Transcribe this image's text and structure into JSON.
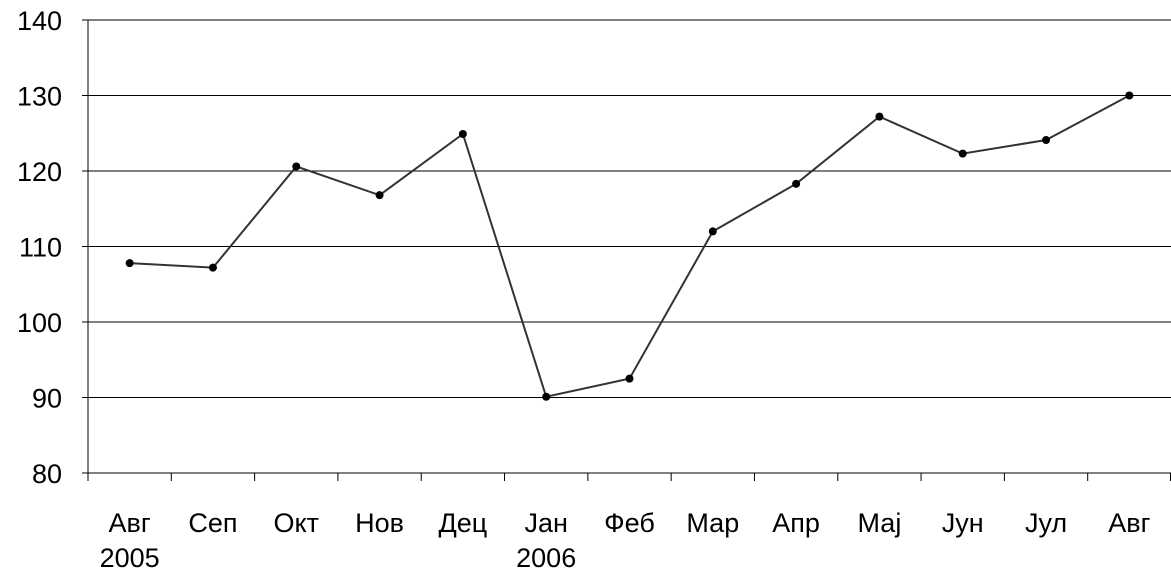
{
  "chart_data": {
    "type": "line",
    "categories": [
      {
        "label": "Авг",
        "year": "2005"
      },
      {
        "label": "Сеп",
        "year": ""
      },
      {
        "label": "Окт",
        "year": ""
      },
      {
        "label": "Нов",
        "year": ""
      },
      {
        "label": "Дец",
        "year": ""
      },
      {
        "label": "Јан",
        "year": "2006"
      },
      {
        "label": "Феб",
        "year": ""
      },
      {
        "label": "Мар",
        "year": ""
      },
      {
        "label": "Апр",
        "year": ""
      },
      {
        "label": "Мај",
        "year": ""
      },
      {
        "label": "Јун",
        "year": ""
      },
      {
        "label": "Јул",
        "year": ""
      },
      {
        "label": "Авг",
        "year": ""
      }
    ],
    "series": [
      {
        "values": [
          107.8,
          107.2,
          120.6,
          116.8,
          124.9,
          90.1,
          92.5,
          112.0,
          118.3,
          127.2,
          122.3,
          124.1,
          130.0
        ]
      }
    ],
    "yticks": [
      "80",
      "90",
      "100",
      "110",
      "120",
      "130",
      "140"
    ],
    "ylim": [
      80,
      140
    ],
    "grid": true,
    "line_color": "#333333",
    "marker_color": "#000000"
  }
}
